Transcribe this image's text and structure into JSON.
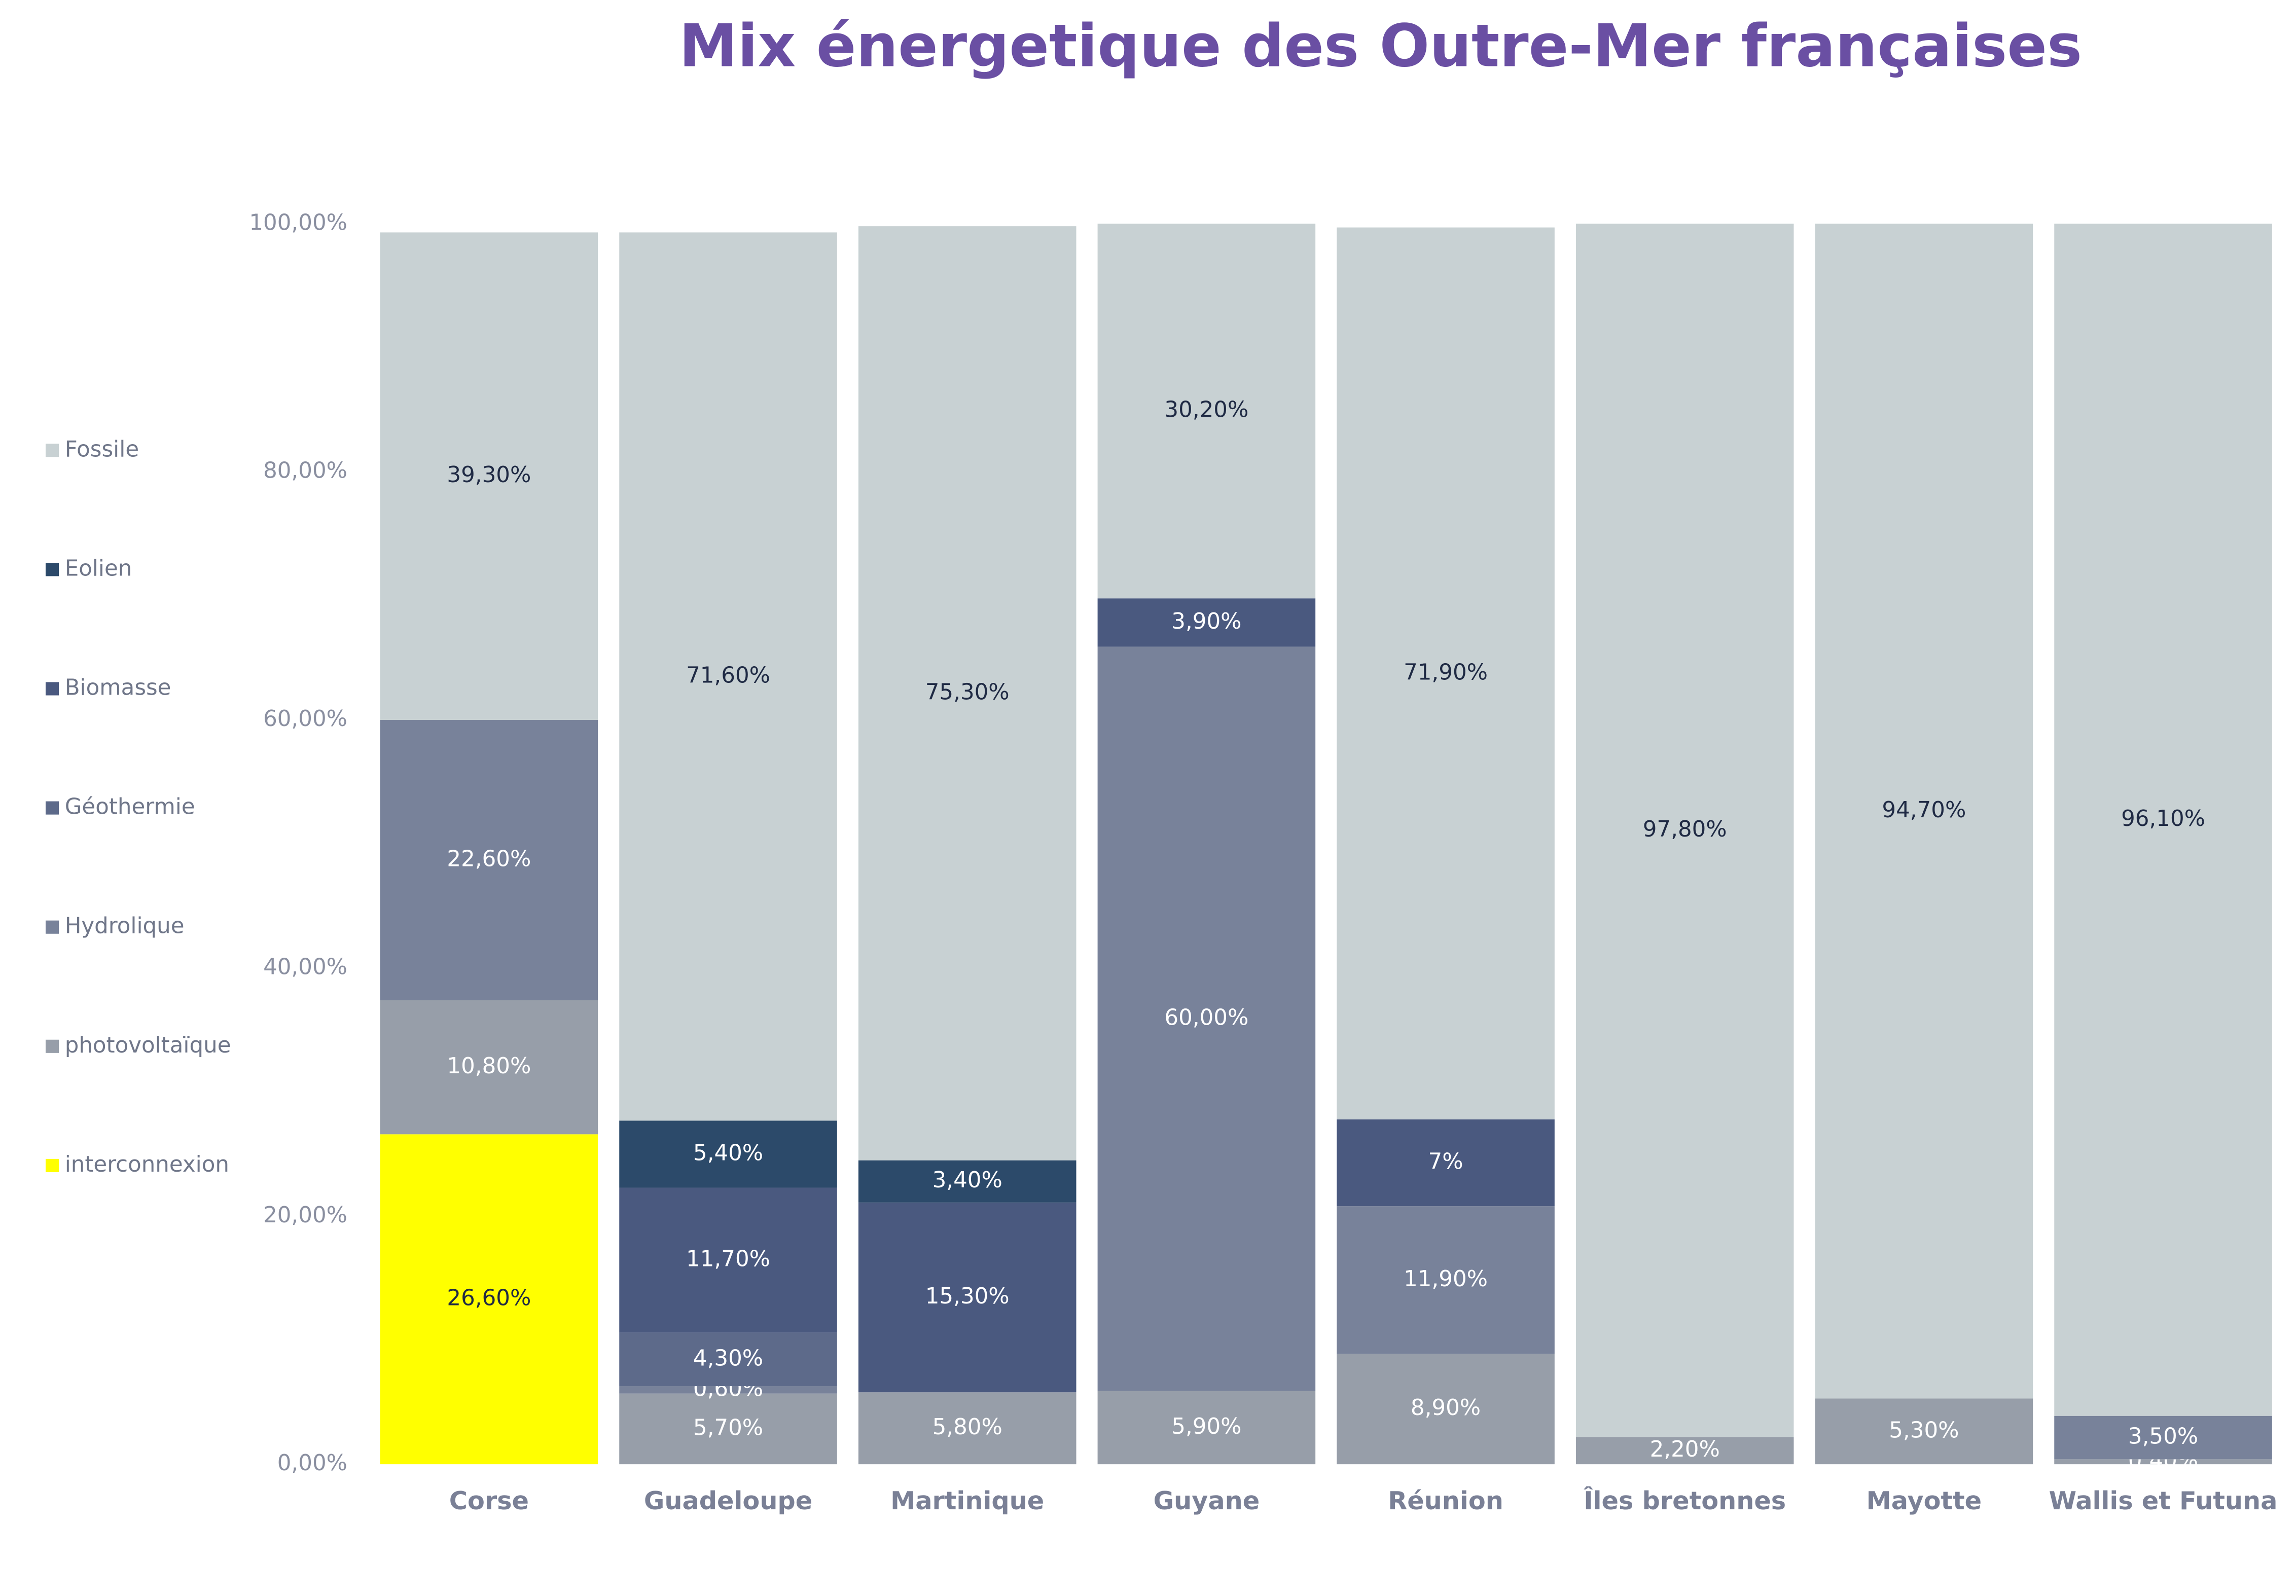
{
  "chart_data": {
    "type": "stacked_bar",
    "title": "Mix énergetique des Outre-Mer françaises",
    "categories": [
      "Corse",
      "Guadeloupe",
      "Martinique",
      "Guyane",
      "Réunion",
      "Îles bretonnes",
      "Mayotte",
      "Wallis et Futuna"
    ],
    "ylim": [
      0,
      100
    ],
    "yticks": [
      {
        "value": 0,
        "label": "0,00%"
      },
      {
        "value": 20,
        "label": "20,00%"
      },
      {
        "value": 40,
        "label": "40,00%"
      },
      {
        "value": 60,
        "label": "60,00%"
      },
      {
        "value": 80,
        "label": "80,00%"
      },
      {
        "value": 100,
        "label": "100,00%"
      }
    ],
    "legend": "left",
    "series": [
      {
        "name": "interconnexion",
        "color": "#ffff00",
        "values": [
          26.6,
          null,
          null,
          null,
          null,
          null,
          null,
          null
        ],
        "value_labels": [
          "26,60%",
          null,
          null,
          null,
          null,
          null,
          null,
          null
        ]
      },
      {
        "name": "photovoltaïque",
        "color": "#979ea9",
        "values": [
          10.8,
          5.7,
          5.8,
          5.9,
          8.9,
          2.2,
          5.3,
          0.4
        ],
        "value_labels": [
          "10,80%",
          "5,70%",
          "5,80%",
          "5,90%",
          "8,90%",
          "2,20%",
          "5,30%",
          "0,40%"
        ]
      },
      {
        "name": "Hydrolique",
        "color": "#78829a",
        "values": [
          22.6,
          0.6,
          null,
          60.0,
          11.9,
          null,
          null,
          3.5
        ],
        "value_labels": [
          "22,60%",
          "0,60%",
          null,
          "60,00%",
          "11,90%",
          null,
          null,
          "3,50%"
        ]
      },
      {
        "name": "Géothermie",
        "color": "#5d6a8a",
        "values": [
          null,
          4.3,
          null,
          null,
          null,
          null,
          null,
          null
        ],
        "value_labels": [
          null,
          "4,30%",
          null,
          null,
          null,
          null,
          null,
          null
        ]
      },
      {
        "name": "Biomasse",
        "color": "#4a597f",
        "values": [
          null,
          11.7,
          15.3,
          3.9,
          7,
          null,
          null,
          null
        ],
        "value_labels": [
          null,
          "11,70%",
          "15,30%",
          "3,90%",
          "7%",
          null,
          null,
          null
        ]
      },
      {
        "name": "Eolien",
        "color": "#2c4a6a",
        "values": [
          null,
          5.4,
          3.4,
          null,
          null,
          null,
          null,
          null
        ],
        "value_labels": [
          null,
          "5,40%",
          "3,40%",
          null,
          null,
          null,
          null,
          null
        ]
      },
      {
        "name": "Fossile",
        "color": "#c8d1d3",
        "values": [
          39.3,
          71.6,
          75.3,
          30.2,
          71.9,
          97.8,
          94.7,
          96.1
        ],
        "value_labels": [
          "39,30%",
          "71,60%",
          "75,30%",
          "30,20%",
          "71,90%",
          "97,80%",
          "94,70%",
          "96,10%"
        ]
      }
    ]
  }
}
